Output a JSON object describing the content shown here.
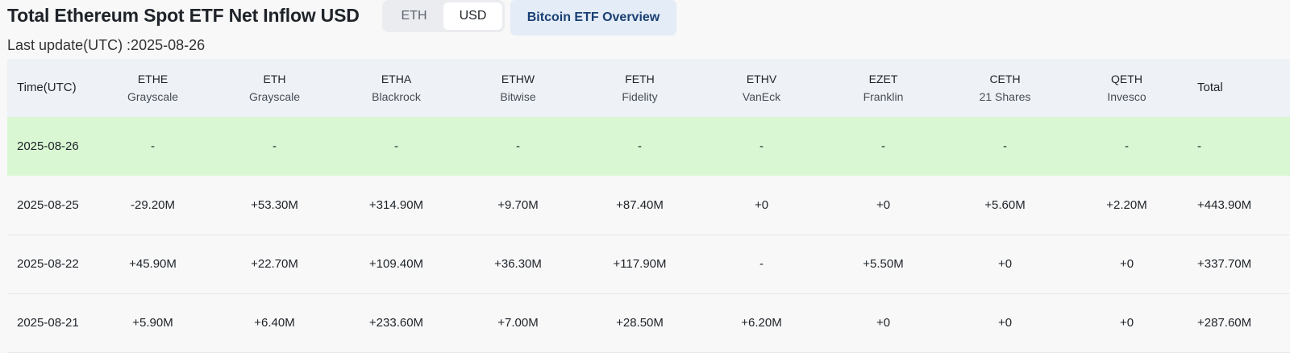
{
  "header": {
    "title": "Total Ethereum Spot ETF Net Inflow USD",
    "toggle": {
      "options": [
        "ETH",
        "USD"
      ],
      "selected": "USD"
    },
    "overview_button": "Bitcoin ETF Overview",
    "last_update": "Last update(UTC) :2025-08-26"
  },
  "colors": {
    "positive": "#20a47f",
    "negative": "#e9394b",
    "highlight_row": "#d9f7d3",
    "header_bg": "#eef2f6"
  },
  "table": {
    "time_header": "Time(UTC)",
    "total_header": "Total",
    "funds": [
      {
        "ticker": "ETHE",
        "issuer": "Grayscale"
      },
      {
        "ticker": "ETH",
        "issuer": "Grayscale"
      },
      {
        "ticker": "ETHA",
        "issuer": "Blackrock"
      },
      {
        "ticker": "ETHW",
        "issuer": "Bitwise"
      },
      {
        "ticker": "FETH",
        "issuer": "Fidelity"
      },
      {
        "ticker": "ETHV",
        "issuer": "VanEck"
      },
      {
        "ticker": "EZET",
        "issuer": "Franklin"
      },
      {
        "ticker": "CETH",
        "issuer": "21 Shares"
      },
      {
        "ticker": "QETH",
        "issuer": "Invesco"
      }
    ],
    "rows": [
      {
        "date": "2025-08-26",
        "values": [
          "-",
          "-",
          "-",
          "-",
          "-",
          "-",
          "-",
          "-",
          "-"
        ],
        "total": "-"
      },
      {
        "date": "2025-08-25",
        "values": [
          "-29.20M",
          "+53.30M",
          "+314.90M",
          "+9.70M",
          "+87.40M",
          "+0",
          "+0",
          "+5.60M",
          "+2.20M"
        ],
        "total": "+443.90M"
      },
      {
        "date": "2025-08-22",
        "values": [
          "+45.90M",
          "+22.70M",
          "+109.40M",
          "+36.30M",
          "+117.90M",
          "-",
          "+5.50M",
          "+0",
          "+0"
        ],
        "total": "+337.70M"
      },
      {
        "date": "2025-08-21",
        "values": [
          "+5.90M",
          "+6.40M",
          "+233.60M",
          "+7.00M",
          "+28.50M",
          "+6.20M",
          "+0",
          "+0",
          "+0"
        ],
        "total": "+287.60M"
      }
    ]
  }
}
